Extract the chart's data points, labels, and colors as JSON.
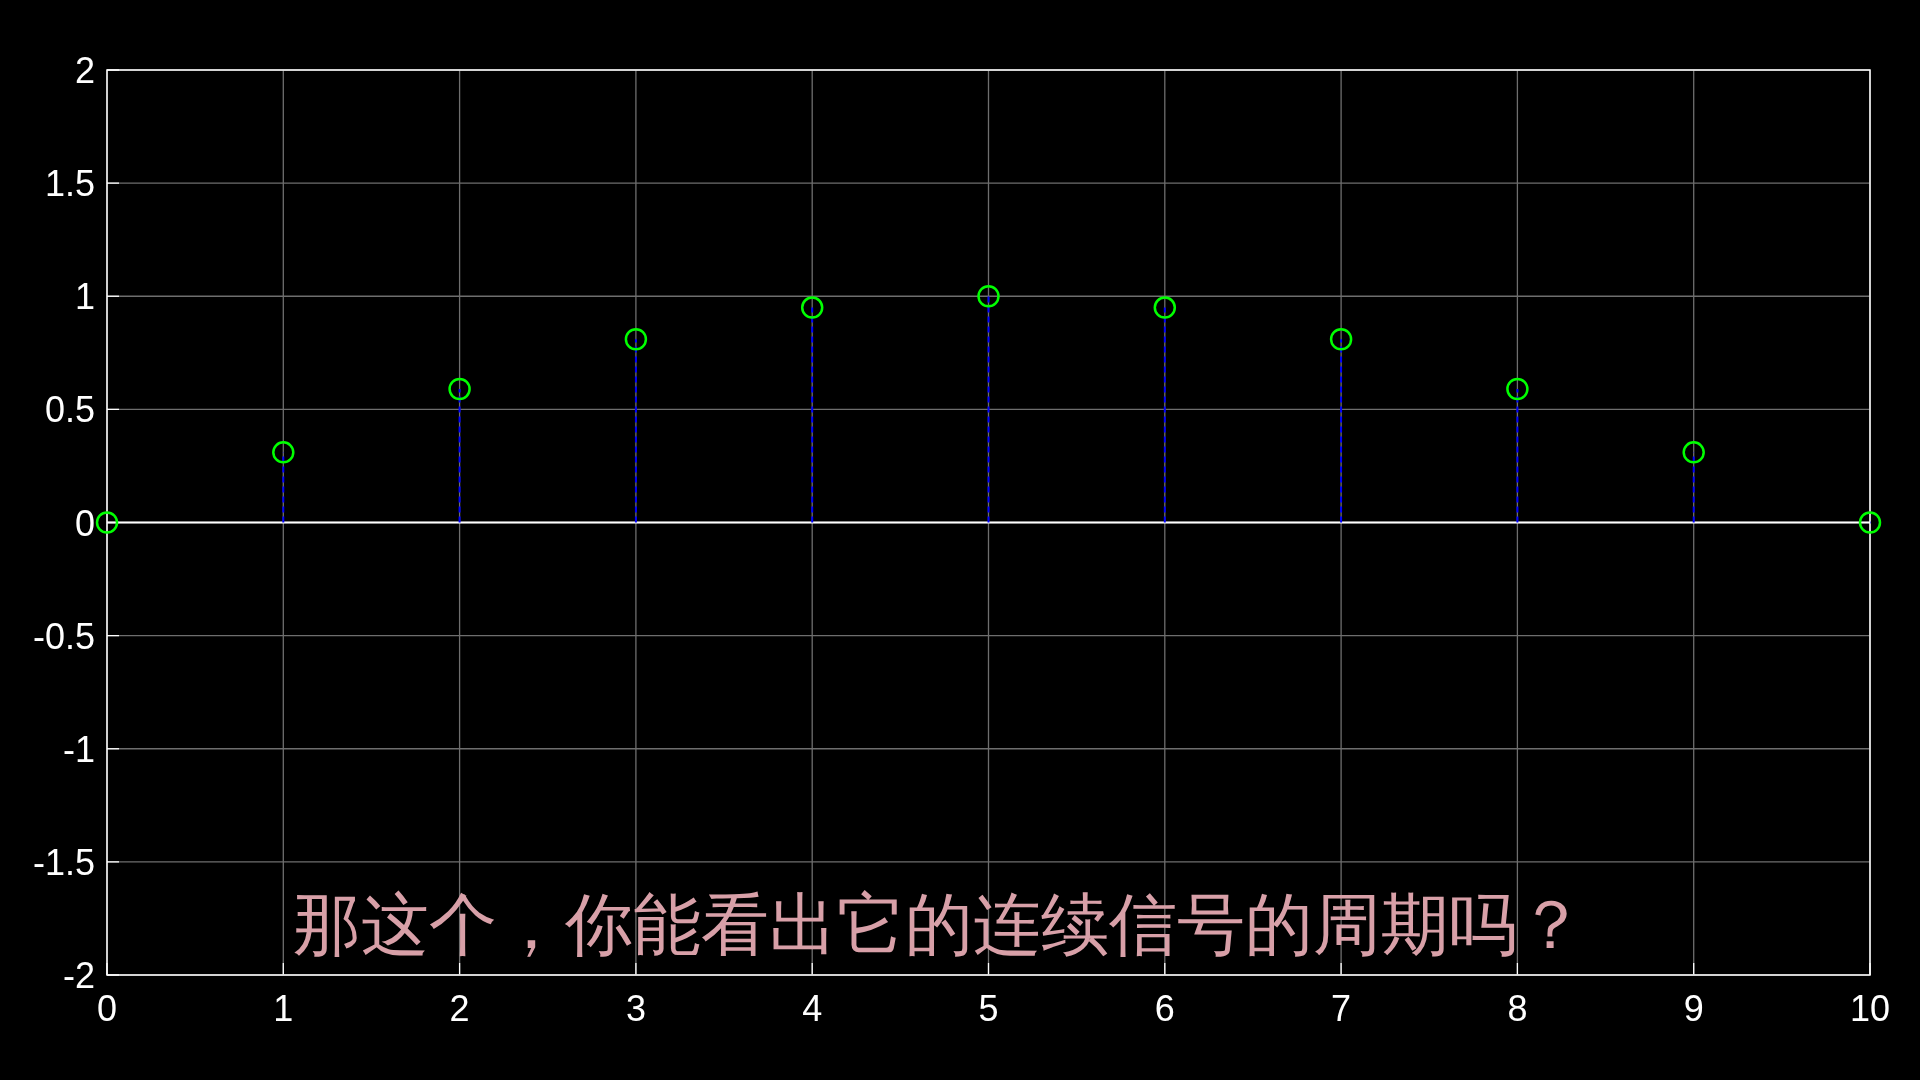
{
  "chart_data": {
    "type": "lollipop",
    "x": [
      0,
      1,
      2,
      3,
      4,
      5,
      6,
      7,
      8,
      9,
      10
    ],
    "series": [
      {
        "color": "#00ff00",
        "values": [
          0,
          0.31,
          0.59,
          0.81,
          0.95,
          1,
          0.95,
          0.81,
          0.59,
          0.31,
          0
        ]
      }
    ],
    "xlim": [
      0,
      10
    ],
    "xticks": [
      0,
      1,
      2,
      3,
      4,
      5,
      6,
      7,
      8,
      9,
      10
    ],
    "ylim": [
      -2,
      2
    ],
    "yticks": [
      -2,
      -1.5,
      -1,
      -0.5,
      0,
      0.5,
      1,
      1.5,
      2
    ],
    "grid": true,
    "marker": "circle",
    "line_style": "dashed",
    "ref_lines": [
      {
        "axis": "y",
        "value": 0,
        "color": "#ffffff"
      }
    ],
    "annotations": [
      "那这个，你能看出它的连续信号的周期吗？"
    ]
  }
}
